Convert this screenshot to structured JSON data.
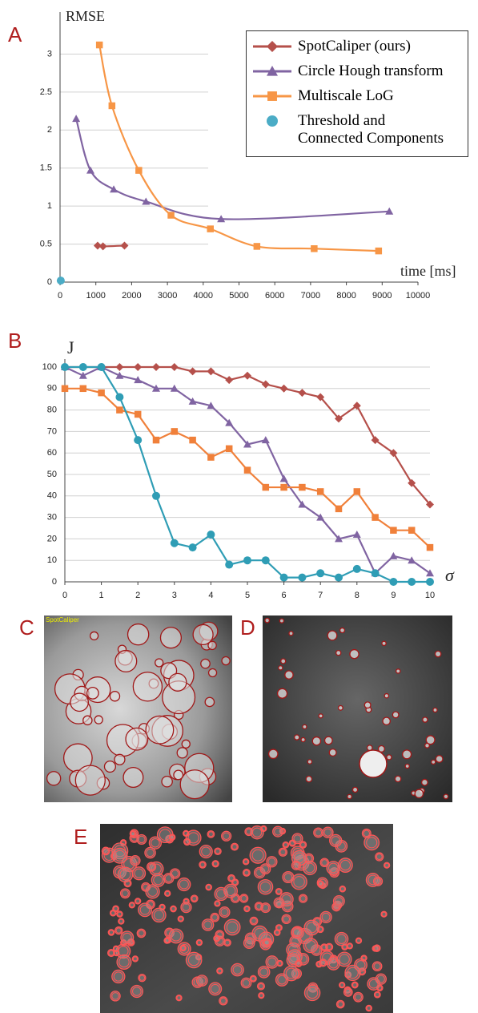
{
  "panel_labels": [
    "A",
    "B",
    "C",
    "D",
    "E"
  ],
  "image_caption": "SpotCaliper",
  "chart_data": [
    {
      "type": "line",
      "ylabel": "RMSE",
      "xlabel": "time [ms]",
      "xlim": [
        0,
        10000
      ],
      "xticks": [
        0,
        1000,
        2000,
        3000,
        4000,
        5000,
        6000,
        7000,
        8000,
        9000,
        10000
      ],
      "ylim": [
        0,
        3.3
      ],
      "yticks": [
        0,
        0.5,
        1,
        1.5,
        2,
        2.5,
        3
      ],
      "grid": true,
      "legend": "top-right",
      "series": [
        {
          "name": "SpotCaliper (ours)",
          "color": "#b5504b",
          "marker": "diamond",
          "x": [
            1050,
            1200,
            1800
          ],
          "values": [
            0.48,
            0.47,
            0.48
          ]
        },
        {
          "name": "Circle Hough transform",
          "color": "#8064a2",
          "marker": "triangle",
          "x": [
            450,
            850,
            1500,
            2400,
            4500,
            9200
          ],
          "values": [
            2.15,
            1.47,
            1.22,
            1.06,
            0.83,
            0.93
          ]
        },
        {
          "name": "Multiscale LoG",
          "color": "#f79646",
          "marker": "square",
          "x": [
            1100,
            1450,
            2200,
            3100,
            4200,
            5500,
            7100,
            8900
          ],
          "values": [
            3.12,
            2.32,
            1.47,
            0.88,
            0.7,
            0.47,
            0.44,
            0.41
          ]
        },
        {
          "name": "Threshold and Connected Components",
          "color": "#4bacc6",
          "marker": "circle",
          "x": [
            20
          ],
          "values": [
            0.02
          ]
        }
      ]
    },
    {
      "type": "line",
      "ylabel": "J",
      "xlabel": "σ",
      "xlim": [
        0,
        10
      ],
      "xticks": [
        0,
        1,
        2,
        3,
        4,
        5,
        6,
        7,
        8,
        9,
        10
      ],
      "ylim": [
        0,
        100
      ],
      "yticks": [
        0,
        10,
        20,
        30,
        40,
        50,
        60,
        70,
        80,
        90,
        100
      ],
      "grid": true,
      "x": [
        0,
        0.5,
        1,
        1.5,
        2,
        2.5,
        3,
        3.5,
        4,
        4.5,
        5,
        5.5,
        6,
        6.5,
        7,
        7.5,
        8,
        8.5,
        9,
        9.5,
        10
      ],
      "series": [
        {
          "color": "#b5504b",
          "marker": "diamond",
          "values": [
            100,
            100,
            100,
            100,
            100,
            100,
            100,
            98,
            98,
            94,
            96,
            92,
            90,
            88,
            86,
            76,
            82,
            66,
            60,
            46,
            36
          ]
        },
        {
          "color": "#8064a2",
          "marker": "triangle",
          "values": [
            100,
            96,
            100,
            96,
            94,
            90,
            90,
            84,
            82,
            74,
            64,
            66,
            48,
            36,
            30,
            20,
            22,
            4,
            12,
            10,
            4
          ]
        },
        {
          "color": "#f0803a",
          "marker": "square",
          "values": [
            90,
            90,
            88,
            80,
            78,
            66,
            70,
            66,
            58,
            62,
            52,
            44,
            44,
            44,
            42,
            34,
            42,
            30,
            24,
            24,
            16
          ]
        },
        {
          "color": "#2f9db5",
          "marker": "circle",
          "values": [
            100,
            100,
            100,
            86,
            66,
            40,
            18,
            16,
            22,
            8,
            10,
            10,
            2,
            2,
            4,
            2,
            6,
            4,
            0,
            0,
            0
          ]
        }
      ]
    }
  ]
}
